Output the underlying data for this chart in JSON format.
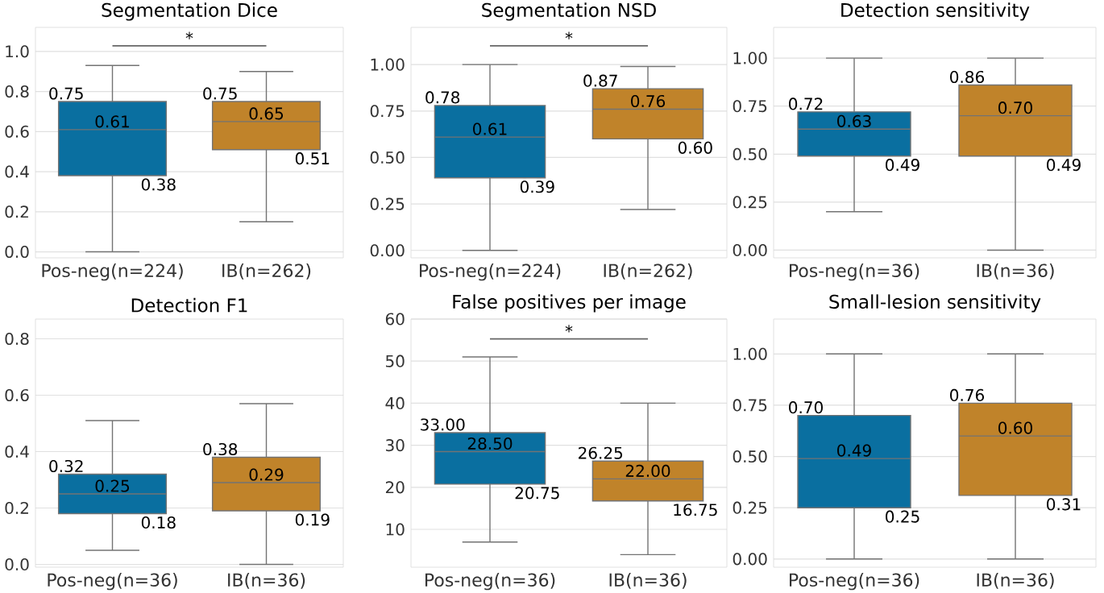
{
  "chart_data": [
    {
      "type": "box",
      "title": "Segmentation Dice",
      "categories": [
        "Pos-neg(n=224)",
        "IB(n=262)"
      ],
      "colors": [
        "#0a6fa0",
        "#c0832a"
      ],
      "boxes": [
        {
          "low": 0.0,
          "q1": 0.38,
          "median": 0.61,
          "q3": 0.75,
          "high": 0.93
        },
        {
          "low": 0.15,
          "q1": 0.51,
          "median": 0.65,
          "q3": 0.75,
          "high": 0.9
        }
      ],
      "value_labels": [
        [
          "0.75",
          "0.61",
          "0.38"
        ],
        [
          "0.75",
          "0.65",
          "0.51"
        ]
      ],
      "ylim": [
        -0.03,
        1.12
      ],
      "yticks": [
        {
          "value": 0,
          "label": "0.0"
        },
        0.2,
        0.4,
        0.6,
        0.8,
        {
          "value": 1,
          "label": "1.0"
        }
      ],
      "grid": "y",
      "annotations": [
        "*"
      ]
    },
    {
      "type": "box",
      "title": "Segmentation NSD",
      "categories": [
        "Pos-neg(n=224)",
        "IB(n=262)"
      ],
      "colors": [
        "#0a6fa0",
        "#c0832a"
      ],
      "boxes": [
        {
          "low": 0.0,
          "q1": 0.39,
          "median": 0.61,
          "q3": 0.78,
          "high": 1.0
        },
        {
          "low": 0.22,
          "q1": 0.6,
          "median": 0.76,
          "q3": 0.87,
          "high": 0.99
        }
      ],
      "value_labels": [
        [
          "0.78",
          "0.61",
          "0.39"
        ],
        [
          "0.87",
          "0.76",
          "0.60"
        ]
      ],
      "ylim": [
        -0.04,
        1.2
      ],
      "yticks": [
        {
          "value": 0,
          "label": "0.00"
        },
        0.25,
        {
          "value": 0.5,
          "label": "0.50"
        },
        0.75,
        {
          "value": 1,
          "label": "1.00"
        }
      ],
      "grid": "y",
      "annotations": [
        "*"
      ]
    },
    {
      "type": "box",
      "title": "Detection sensitivity",
      "categories": [
        "Pos-neg(n=36)",
        "IB(n=36)"
      ],
      "colors": [
        "#0a6fa0",
        "#c0832a"
      ],
      "boxes": [
        {
          "low": 0.2,
          "q1": 0.49,
          "median": 0.63,
          "q3": 0.72,
          "high": 1.0
        },
        {
          "low": 0.0,
          "q1": 0.49,
          "median": 0.7,
          "q3": 0.86,
          "high": 1.0
        }
      ],
      "value_labels": [
        [
          "0.72",
          "0.63",
          "0.49"
        ],
        [
          "0.86",
          "0.70",
          "0.49"
        ]
      ],
      "ylim": [
        -0.04,
        1.16
      ],
      "yticks": [
        {
          "value": 0,
          "label": "0.00"
        },
        0.25,
        {
          "value": 0.5,
          "label": "0.50"
        },
        0.75,
        {
          "value": 1,
          "label": "1.00"
        }
      ],
      "grid": "y"
    },
    {
      "type": "box",
      "title": "Detection F1",
      "categories": [
        "Pos-neg(n=36)",
        "IB(n=36)"
      ],
      "colors": [
        "#0a6fa0",
        "#c0832a"
      ],
      "boxes": [
        {
          "low": 0.05,
          "q1": 0.18,
          "median": 0.25,
          "q3": 0.32,
          "high": 0.51
        },
        {
          "low": 0.0,
          "q1": 0.19,
          "median": 0.29,
          "q3": 0.38,
          "high": 0.57
        }
      ],
      "value_labels": [
        [
          "0.32",
          "0.25",
          "0.18"
        ],
        [
          "0.38",
          "0.29",
          "0.19"
        ]
      ],
      "ylim": [
        -0.01,
        0.87
      ],
      "yticks": [
        {
          "value": 0,
          "label": "0.0"
        },
        0.2,
        0.4,
        0.6,
        0.8
      ],
      "grid": "y"
    },
    {
      "type": "box",
      "title": "False positives per image",
      "categories": [
        "Pos-neg(n=36)",
        "IB(n=36)"
      ],
      "colors": [
        "#0a6fa0",
        "#c0832a"
      ],
      "boxes": [
        {
          "low": 7,
          "q1": 20.75,
          "median": 28.5,
          "q3": 33,
          "high": 51
        },
        {
          "low": 4,
          "q1": 16.75,
          "median": 22,
          "q3": 26.25,
          "high": 40
        }
      ],
      "value_labels": [
        [
          "33.00",
          "28.50",
          "20.75"
        ],
        [
          "26.25",
          "22.00",
          "16.75"
        ]
      ],
      "ylim": [
        1,
        60
      ],
      "yticks": [
        10,
        20,
        30,
        40,
        50,
        60
      ],
      "grid": "y",
      "annotations": [
        "*"
      ]
    },
    {
      "type": "box",
      "title": "Small-lesion sensitivity",
      "categories": [
        "Pos-neg(n=36)",
        "IB(n=36)"
      ],
      "colors": [
        "#0a6fa0",
        "#c0832a"
      ],
      "boxes": [
        {
          "low": 0.0,
          "q1": 0.25,
          "median": 0.49,
          "q3": 0.7,
          "high": 1.0
        },
        {
          "low": 0.0,
          "q1": 0.31,
          "median": 0.6,
          "q3": 0.76,
          "high": 1.0
        }
      ],
      "value_labels": [
        [
          "0.70",
          "0.49",
          "0.25"
        ],
        [
          "0.76",
          "0.60",
          "0.31"
        ]
      ],
      "ylim": [
        -0.04,
        1.17
      ],
      "yticks": [
        {
          "value": 0,
          "label": "0.00"
        },
        0.25,
        {
          "value": 0.5,
          "label": "0.50"
        },
        0.75,
        {
          "value": 1,
          "label": "1.00"
        }
      ],
      "grid": "y"
    }
  ]
}
